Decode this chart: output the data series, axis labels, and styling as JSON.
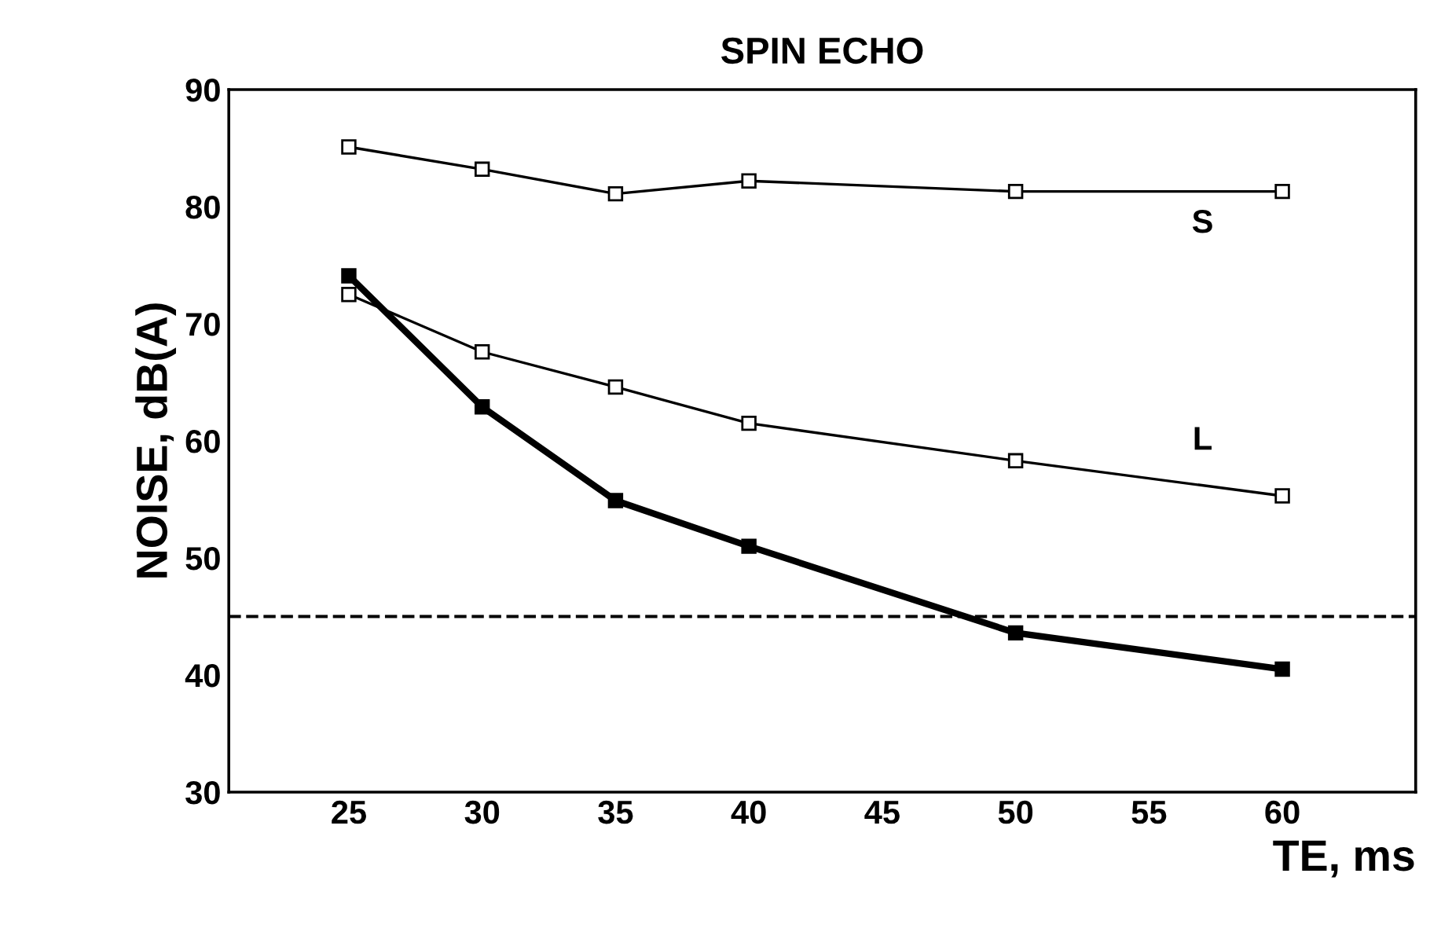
{
  "chart_data": {
    "type": "line",
    "title": "SPIN ECHO",
    "xlabel": "TE, ms",
    "ylabel": "NOISE, dB(A)",
    "x": [
      25,
      30,
      35,
      40,
      50,
      60
    ],
    "series": [
      {
        "name": "S",
        "color": "#000000",
        "values": [
          85.1,
          83.2,
          81.1,
          82.2,
          81.3,
          81.3
        ]
      },
      {
        "name": "L",
        "color": "#000000",
        "values": [
          72.5,
          67.6,
          64.6,
          61.5,
          58.3,
          55.3
        ]
      },
      {
        "color": "#000000",
        "values": [
          74.1,
          62.9,
          54.9,
          51.0,
          43.6,
          40.5
        ]
      }
    ],
    "xlim": [
      20.5,
      65
    ],
    "xticks": [
      25,
      30,
      35,
      40,
      45,
      50,
      55,
      60
    ],
    "ylim": [
      30,
      90
    ],
    "yticks": [
      30,
      40,
      50,
      60,
      70,
      80,
      90
    ],
    "ref_lines": [
      {
        "axis": "y",
        "value": 45,
        "color": "#000000",
        "line_style": "dashed"
      }
    ],
    "marker": "square",
    "line_style": "solid",
    "grid": false,
    "legend": false
  }
}
